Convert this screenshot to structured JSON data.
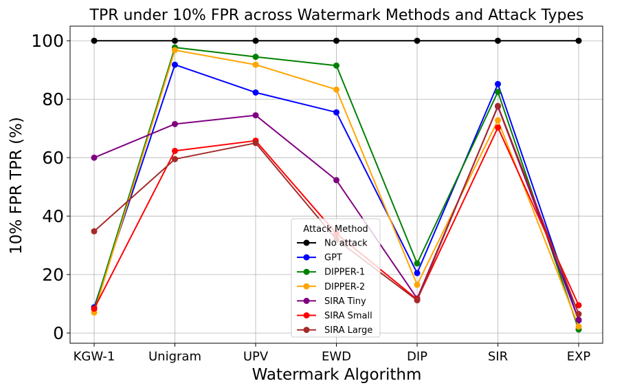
{
  "chart_data": {
    "type": "line",
    "title": "TPR under 10% FPR across Watermark Methods and Attack Types",
    "xlabel": "Watermark Algorithm",
    "ylabel": "10% FPR TPR (%)",
    "categories": [
      "KGW-1",
      "Unigram",
      "UPV",
      "EWD",
      "DIP",
      "SIR",
      "EXP"
    ],
    "ylim": [
      -3.5,
      105
    ],
    "yticks": [
      0,
      20,
      40,
      60,
      80,
      100
    ],
    "grid": true,
    "legend": {
      "title": "Attack Method",
      "position": "lower-center"
    },
    "series": [
      {
        "name": "No attack",
        "color": "#000000",
        "values": [
          100,
          100,
          100,
          100,
          100,
          100,
          100
        ]
      },
      {
        "name": "GPT",
        "color": "#0000ff",
        "values": [
          8.8,
          91.8,
          82.3,
          75.5,
          20.5,
          85.2,
          4.3
        ]
      },
      {
        "name": "DIPPER-1",
        "color": "#008000",
        "values": [
          8.2,
          97.7,
          94.5,
          91.5,
          23.8,
          82.5,
          1.2
        ]
      },
      {
        "name": "DIPPER-2",
        "color": "#ffa500",
        "values": [
          7.0,
          96.8,
          91.8,
          83.3,
          16.5,
          72.8,
          2.2
        ]
      },
      {
        "name": "SIRA Tiny",
        "color": "#800080",
        "values": [
          60.0,
          71.5,
          74.5,
          52.3,
          11.8,
          77.5,
          4.5
        ]
      },
      {
        "name": "SIRA Small",
        "color": "#ff0000",
        "values": [
          8.3,
          62.3,
          65.8,
          34.0,
          11.5,
          70.3,
          9.5
        ]
      },
      {
        "name": "SIRA Large",
        "color": "#a52a2a",
        "values": [
          34.8,
          59.5,
          65.0,
          32.0,
          11.2,
          77.7,
          6.5
        ]
      }
    ]
  }
}
